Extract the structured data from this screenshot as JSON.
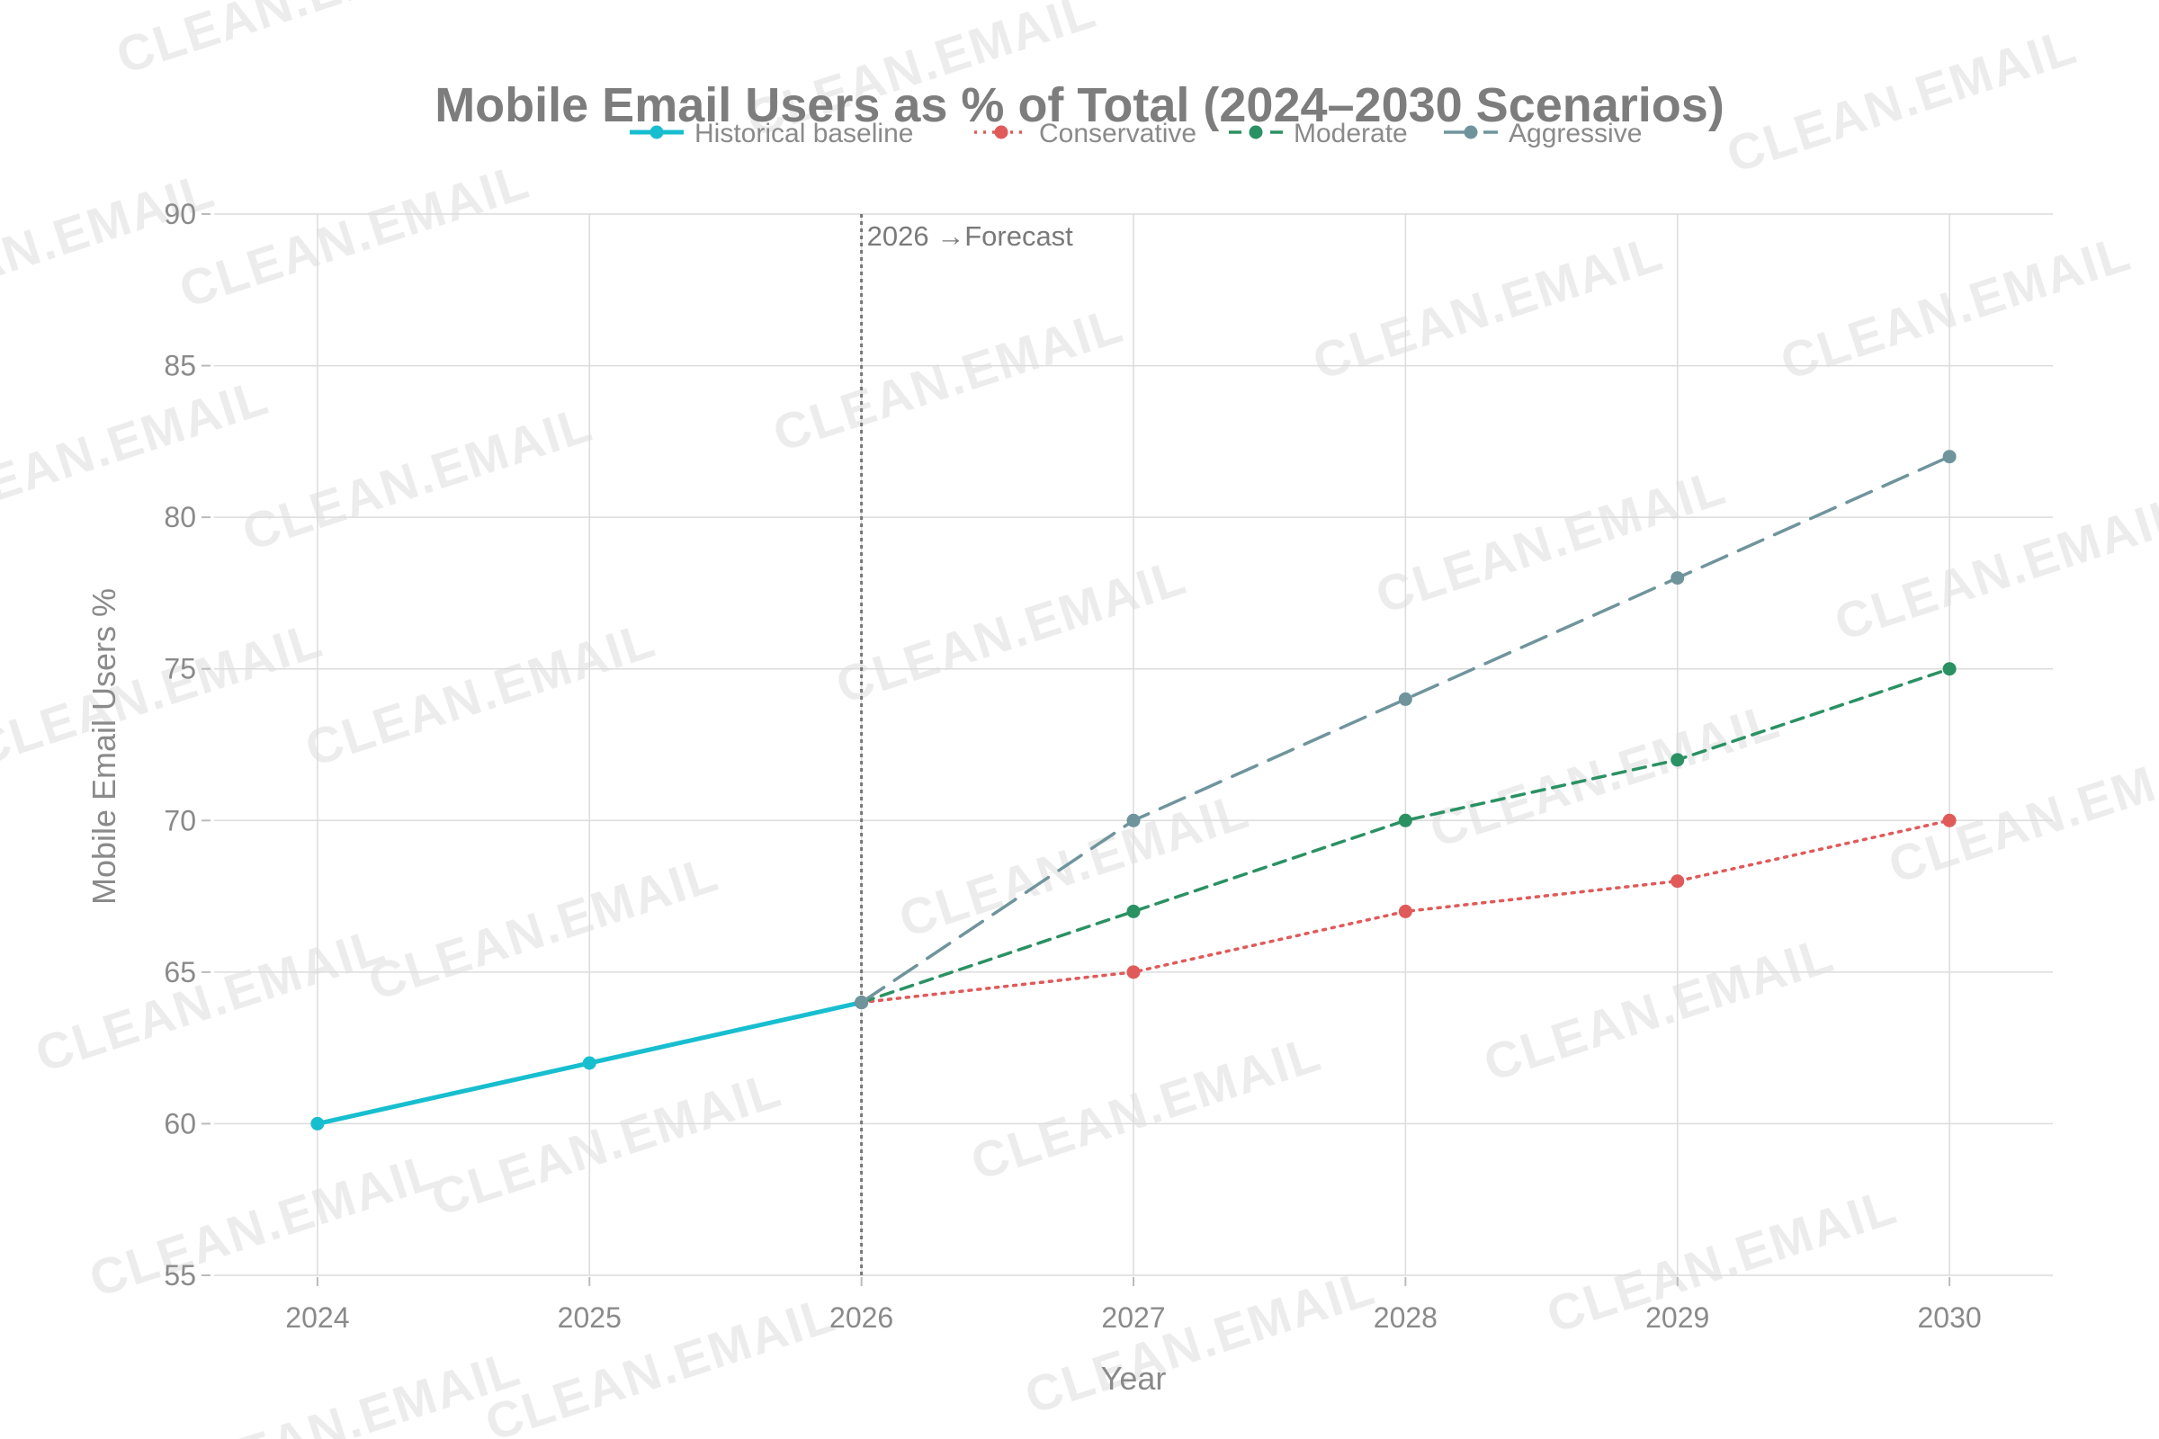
{
  "watermark": "CLEAN.EMAIL",
  "chart_data": {
    "type": "line",
    "title": "Mobile Email Users as % of Total (2024–2030 Scenarios)",
    "xlabel": "Year",
    "ylabel": "Mobile Email Users %",
    "x": [
      2024,
      2025,
      2026,
      2027,
      2028,
      2029,
      2030
    ],
    "xlim": [
      2023.62,
      2030.38
    ],
    "ylim": [
      55,
      90
    ],
    "yticks": [
      55,
      60,
      65,
      70,
      75,
      80,
      85,
      90
    ],
    "grid": true,
    "legend_position": "top",
    "annotation": {
      "x": 2026,
      "text": "2026 →Forecast"
    },
    "series": [
      {
        "name": "Historical baseline",
        "color": "#17becf",
        "dash": "solid",
        "width": 5,
        "points": [
          [
            2024,
            60
          ],
          [
            2025,
            62
          ],
          [
            2026,
            64
          ]
        ]
      },
      {
        "name": "Conservative",
        "color": "#e05a5a",
        "dash": "dot",
        "width": 3.5,
        "points": [
          [
            2026,
            64
          ],
          [
            2027,
            65
          ],
          [
            2028,
            67
          ],
          [
            2029,
            68
          ],
          [
            2030,
            70
          ]
        ]
      },
      {
        "name": "Moderate",
        "color": "#2a9163",
        "dash": "dash",
        "width": 3.5,
        "points": [
          [
            2026,
            64
          ],
          [
            2027,
            67
          ],
          [
            2028,
            70
          ],
          [
            2029,
            72
          ],
          [
            2030,
            75
          ]
        ]
      },
      {
        "name": "Aggressive",
        "color": "#6f949c",
        "dash": "longdash",
        "width": 3.5,
        "points": [
          [
            2026,
            64
          ],
          [
            2027,
            70
          ],
          [
            2028,
            74
          ],
          [
            2029,
            78
          ],
          [
            2030,
            82
          ]
        ]
      }
    ]
  }
}
